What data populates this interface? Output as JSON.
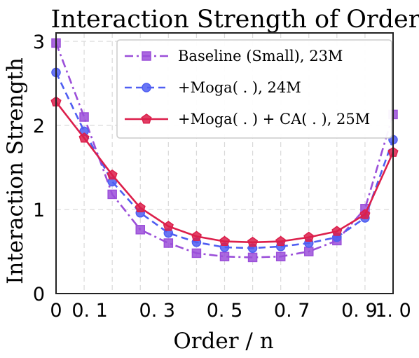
{
  "chart_data": {
    "type": "line",
    "title": "Interaction Strength of Order",
    "xlabel": "Order / n",
    "ylabel": "Interaction Strength",
    "xlim": [
      0,
      1.0
    ],
    "ylim": [
      0,
      3.1
    ],
    "grid": true,
    "legend_position": "top-right",
    "x_ticks": [
      0,
      0.1,
      0.3,
      0.5,
      0.7,
      0.9,
      1.0
    ],
    "x_tick_labels": [
      "0",
      "0. 1",
      "0. 3",
      "0. 5",
      "0. 7",
      "0. 9",
      "1. 0"
    ],
    "y_ticks": [
      0,
      1,
      2,
      3
    ],
    "y_tick_labels": [
      "0",
      "1",
      "2",
      "3"
    ],
    "x": [
      0.0,
      0.0833,
      0.1667,
      0.25,
      0.3333,
      0.4167,
      0.5,
      0.5833,
      0.6667,
      0.75,
      0.8333,
      0.9167,
      1.0
    ],
    "series": [
      {
        "name": "Baseline (Small),  23M",
        "color": "#9b4fd9",
        "marker": "square",
        "line_style": "dashdot",
        "values": [
          2.98,
          2.1,
          1.18,
          0.76,
          0.6,
          0.48,
          0.44,
          0.43,
          0.44,
          0.5,
          0.63,
          1.01,
          2.13
        ]
      },
      {
        "name": "+Moga( . ),  24M",
        "color": "#4f5ef2",
        "marker": "circle",
        "line_style": "dashed",
        "values": [
          2.63,
          1.93,
          1.33,
          0.96,
          0.72,
          0.61,
          0.55,
          0.54,
          0.56,
          0.6,
          0.67,
          0.9,
          1.83
        ]
      },
      {
        "name": "+Moga( . ) + CA( . ),  25M",
        "color": "#dc1f4b",
        "marker": "pentagon",
        "line_style": "solid",
        "values": [
          2.28,
          1.85,
          1.41,
          1.02,
          0.8,
          0.68,
          0.62,
          0.61,
          0.62,
          0.67,
          0.74,
          0.94,
          1.68
        ]
      }
    ]
  }
}
